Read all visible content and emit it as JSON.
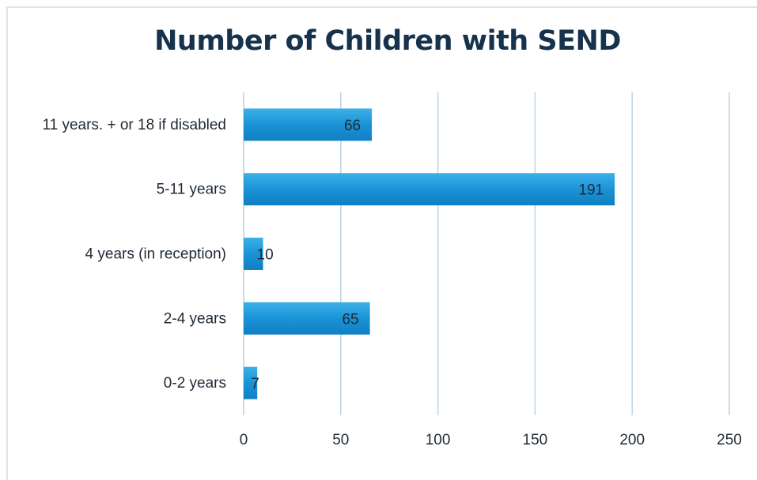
{
  "chart_data": {
    "type": "bar",
    "orientation": "horizontal",
    "title": "Number of Children with SEND",
    "categories": [
      "11 years. + or 18 if disabled",
      "5-11 years",
      "4 years  (in reception)",
      "2-4 years",
      "0-2 years"
    ],
    "values": [
      66,
      191,
      10,
      65,
      7
    ],
    "xlim": [
      0,
      250
    ],
    "xticks": [
      0,
      50,
      100,
      150,
      200,
      250
    ],
    "grid": "vertical",
    "bar_color": "#1a93d6",
    "data_labels": true
  }
}
